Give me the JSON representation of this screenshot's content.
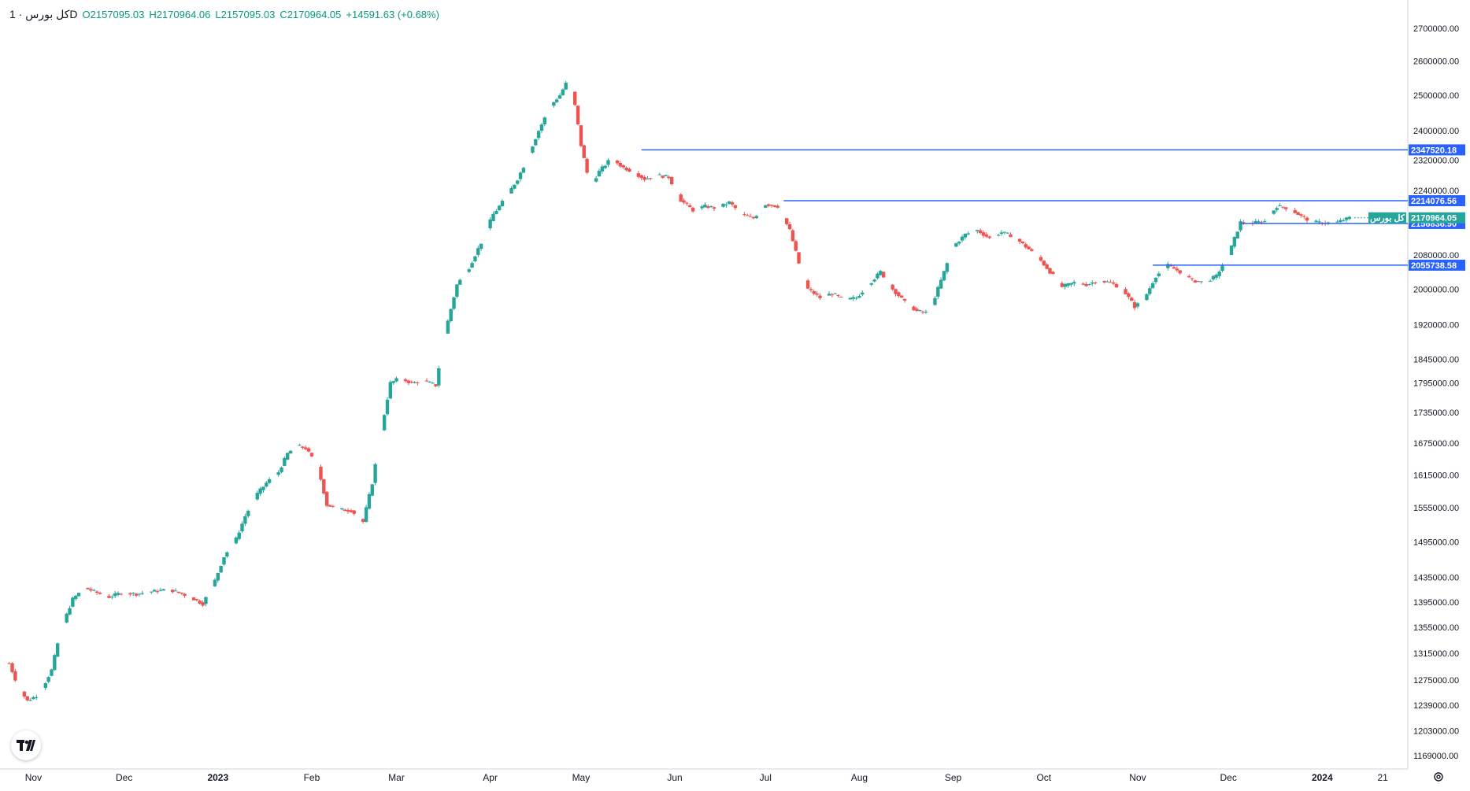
{
  "legend": {
    "symbol": "کل بورس · 1D",
    "open_label": "O",
    "open": "2157095.03",
    "high_label": "H",
    "high": "2170964.06",
    "low_label": "L",
    "low": "2157095.03",
    "close_label": "C",
    "close": "2170964.05",
    "change": "+14591.63 (+0.68%)"
  },
  "chart_data": {
    "type": "candlestick",
    "symbol_label": "کل بورس",
    "interval": "1D",
    "y_axis_ticks": [
      "2700000.00",
      "2600000.00",
      "2500000.00",
      "2400000.00",
      "2320000.00",
      "2240000.00",
      "2160000.00",
      "2080000.00",
      "2000000.00",
      "1920000.00",
      "1845000.00",
      "1795000.00",
      "1735000.00",
      "1675000.00",
      "1615000.00",
      "1555000.00",
      "1495000.00",
      "1435000.00",
      "1395000.00",
      "1355000.00",
      "1315000.00",
      "1275000.00",
      "1239000.00",
      "1203000.00",
      "1169000.00"
    ],
    "y_axis_values": [
      2700000,
      2600000,
      2500000,
      2400000,
      2320000,
      2240000,
      2160000,
      2080000,
      2000000,
      1920000,
      1845000,
      1795000,
      1735000,
      1675000,
      1615000,
      1555000,
      1495000,
      1435000,
      1395000,
      1355000,
      1315000,
      1275000,
      1239000,
      1203000,
      1169000
    ],
    "x_axis_ticks": [
      "Nov",
      "Dec",
      "2023",
      "Feb",
      "Mar",
      "Apr",
      "May",
      "Jun",
      "Jul",
      "Aug",
      "Sep",
      "Oct",
      "Nov",
      "Dec",
      "2024",
      "21"
    ],
    "up_color": "#26a69a",
    "down_color": "#ef5350",
    "horizontal_lines": [
      {
        "value": 2347520.18,
        "label": "2347520.18",
        "start": "2023-05-21",
        "color": "#2962ff"
      },
      {
        "value": 2214076.56,
        "label": "2214076.56",
        "start": "2023-07-07",
        "color": "#2962ff"
      },
      {
        "value": 2156836.9,
        "label": "2156836.90",
        "start": "2023-12-05",
        "color": "#2962ff"
      },
      {
        "value": 2055738.58,
        "label": "2055738.58",
        "start": "2023-11-06",
        "color": "#2962ff"
      }
    ],
    "last_price": {
      "value": 2170964.05,
      "label": "2170964.05",
      "name": "کل بورس",
      "color": "#26a69a"
    },
    "price_path": [
      [
        "2022-10-24",
        1300000
      ],
      [
        "2022-10-27",
        1265000
      ],
      [
        "2022-10-30",
        1245000
      ],
      [
        "2022-11-03",
        1255000
      ],
      [
        "2022-11-07",
        1290000
      ],
      [
        "2022-11-10",
        1350000
      ],
      [
        "2022-11-14",
        1400000
      ],
      [
        "2022-11-18",
        1418000
      ],
      [
        "2022-11-22",
        1410000
      ],
      [
        "2022-11-26",
        1403000
      ],
      [
        "2022-11-30",
        1410000
      ],
      [
        "2022-12-05",
        1408000
      ],
      [
        "2022-12-10",
        1412000
      ],
      [
        "2022-12-16",
        1415000
      ],
      [
        "2022-12-22",
        1405000
      ],
      [
        "2022-12-27",
        1392000
      ],
      [
        "2022-12-31",
        1430000
      ],
      [
        "2023-01-03",
        1470000
      ],
      [
        "2023-01-07",
        1500000
      ],
      [
        "2023-01-10",
        1540000
      ],
      [
        "2023-01-14",
        1580000
      ],
      [
        "2023-01-17",
        1600000
      ],
      [
        "2023-01-21",
        1620000
      ],
      [
        "2023-01-24",
        1655000
      ],
      [
        "2023-01-27",
        1670000
      ],
      [
        "2023-01-30",
        1665000
      ],
      [
        "2023-02-03",
        1630000
      ],
      [
        "2023-02-06",
        1560000
      ],
      [
        "2023-02-10",
        1552000
      ],
      [
        "2023-02-14",
        1550000
      ],
      [
        "2023-02-18",
        1530000
      ],
      [
        "2023-02-21",
        1600000
      ],
      [
        "2023-02-24",
        1700000
      ],
      [
        "2023-02-27",
        1795000
      ],
      [
        "2023-03-02",
        1805000
      ],
      [
        "2023-03-06",
        1795000
      ],
      [
        "2023-03-10",
        1800000
      ],
      [
        "2023-03-14",
        1790000
      ],
      [
        "2023-03-17",
        1900000
      ],
      [
        "2023-03-21",
        2010000
      ],
      [
        "2023-03-25",
        2050000
      ],
      [
        "2023-03-29",
        2110000
      ],
      [
        "2023-04-02",
        2180000
      ],
      [
        "2023-04-06",
        2220000
      ],
      [
        "2023-04-10",
        2270000
      ],
      [
        "2023-04-13",
        2320000
      ],
      [
        "2023-04-17",
        2400000
      ],
      [
        "2023-04-21",
        2470000
      ],
      [
        "2023-04-24",
        2500000
      ],
      [
        "2023-04-27",
        2550000
      ],
      [
        "2023-04-29",
        2470000
      ],
      [
        "2023-05-01",
        2360000
      ],
      [
        "2023-05-04",
        2250000
      ],
      [
        "2023-05-07",
        2290000
      ],
      [
        "2023-05-11",
        2325000
      ],
      [
        "2023-05-15",
        2300000
      ],
      [
        "2023-05-18",
        2290000
      ],
      [
        "2023-05-22",
        2270000
      ],
      [
        "2023-05-26",
        2280000
      ],
      [
        "2023-05-30",
        2275000
      ],
      [
        "2023-06-03",
        2215000
      ],
      [
        "2023-06-07",
        2190000
      ],
      [
        "2023-06-11",
        2200000
      ],
      [
        "2023-06-15",
        2195000
      ],
      [
        "2023-06-19",
        2210000
      ],
      [
        "2023-06-23",
        2180000
      ],
      [
        "2023-06-27",
        2170000
      ],
      [
        "2023-07-01",
        2205000
      ],
      [
        "2023-07-05",
        2200000
      ],
      [
        "2023-07-09",
        2140000
      ],
      [
        "2023-07-12",
        2060000
      ],
      [
        "2023-07-15",
        2000000
      ],
      [
        "2023-07-19",
        1980000
      ],
      [
        "2023-07-23",
        1990000
      ],
      [
        "2023-07-27",
        1975000
      ],
      [
        "2023-07-31",
        1980000
      ],
      [
        "2023-08-04",
        2010000
      ],
      [
        "2023-08-08",
        2040000
      ],
      [
        "2023-08-12",
        2000000
      ],
      [
        "2023-08-16",
        1970000
      ],
      [
        "2023-08-20",
        1950000
      ],
      [
        "2023-08-24",
        1945000
      ],
      [
        "2023-08-28",
        2020000
      ],
      [
        "2023-09-01",
        2100000
      ],
      [
        "2023-09-05",
        2130000
      ],
      [
        "2023-09-09",
        2140000
      ],
      [
        "2023-09-13",
        2120000
      ],
      [
        "2023-09-17",
        2135000
      ],
      [
        "2023-09-21",
        2125000
      ],
      [
        "2023-09-25",
        2100000
      ],
      [
        "2023-09-29",
        2075000
      ],
      [
        "2023-10-03",
        2040000
      ],
      [
        "2023-10-07",
        2005000
      ],
      [
        "2023-10-11",
        2015000
      ],
      [
        "2023-10-15",
        2010000
      ],
      [
        "2023-10-19",
        2020000
      ],
      [
        "2023-10-23",
        2015000
      ],
      [
        "2023-10-27",
        2000000
      ],
      [
        "2023-10-31",
        1960000
      ],
      [
        "2023-11-03",
        1975000
      ],
      [
        "2023-11-07",
        2030000
      ],
      [
        "2023-11-11",
        2055000
      ],
      [
        "2023-11-15",
        2040000
      ],
      [
        "2023-11-19",
        2020000
      ],
      [
        "2023-11-23",
        2015000
      ],
      [
        "2023-11-27",
        2030000
      ],
      [
        "2023-12-01",
        2080000
      ],
      [
        "2023-12-05",
        2160000
      ],
      [
        "2023-12-09",
        2158000
      ],
      [
        "2023-12-13",
        2162000
      ],
      [
        "2023-12-17",
        2200000
      ],
      [
        "2023-12-21",
        2195000
      ],
      [
        "2023-12-25",
        2175000
      ],
      [
        "2023-12-29",
        2160000
      ],
      [
        "2024-01-02",
        2158000
      ],
      [
        "2024-01-06",
        2160000
      ],
      [
        "2024-01-10",
        2170964
      ]
    ]
  },
  "controls": {
    "logo_icon": "tradingview-logo-icon",
    "settings_icon": "gear-icon"
  }
}
